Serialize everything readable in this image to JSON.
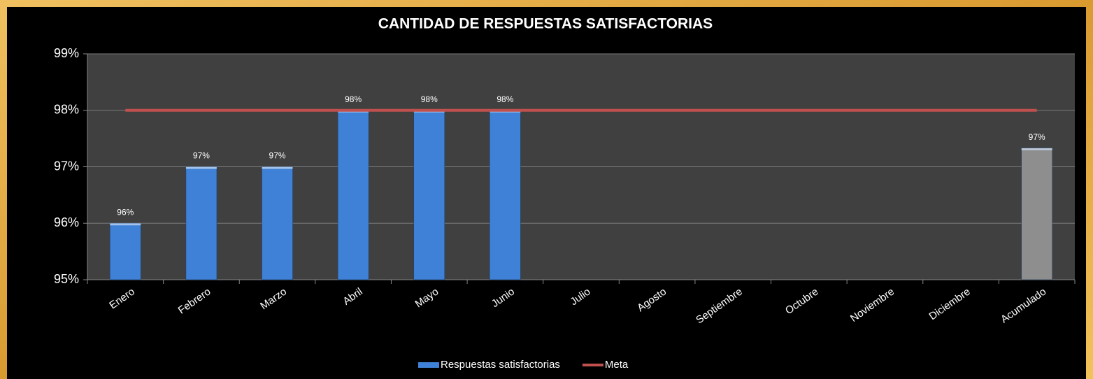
{
  "chart_data": {
    "type": "bar",
    "title": "CANTIDAD DE RESPUESTAS SATISFACTORIAS",
    "categories": [
      "Enero",
      "Febrero",
      "Marzo",
      "Abril",
      "Mayo",
      "Junio",
      "Julio",
      "Agosto",
      "Septiembre",
      "Octubre",
      "Noviembre",
      "Diciembre",
      "Acumulado"
    ],
    "series": [
      {
        "name": "Respuestas satisfactorias",
        "color": "#3f81d6",
        "values": [
          96,
          97,
          97,
          98,
          98,
          98,
          null,
          null,
          null,
          null,
          null,
          null,
          97.33
        ],
        "value_labels": [
          "96%",
          "97%",
          "97%",
          "98%",
          "98%",
          "98%",
          null,
          null,
          null,
          null,
          null,
          null,
          "97%"
        ],
        "point_colors": [
          "#3f81d6",
          "#3f81d6",
          "#3f81d6",
          "#3f81d6",
          "#3f81d6",
          "#3f81d6",
          null,
          null,
          null,
          null,
          null,
          null,
          "#8e8e8e"
        ]
      },
      {
        "name": "Meta",
        "type": "line",
        "color": "#c0504d",
        "values": [
          98,
          98,
          98,
          98,
          98,
          98,
          98,
          98,
          98,
          98,
          98,
          98,
          98
        ]
      }
    ],
    "ylim": [
      95,
      99
    ],
    "yticks": [
      {
        "value": 95,
        "label": "95%"
      },
      {
        "value": 96,
        "label": "96%"
      },
      {
        "value": 97,
        "label": "97%"
      },
      {
        "value": 98,
        "label": "98%"
      },
      {
        "value": 99,
        "label": "99%"
      }
    ],
    "grid": true,
    "legend": "bottom"
  }
}
